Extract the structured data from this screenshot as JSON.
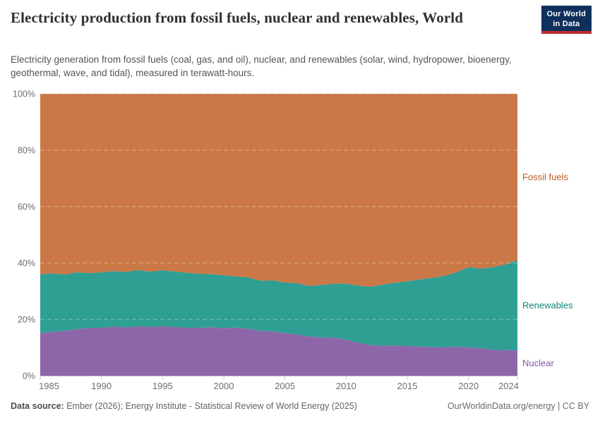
{
  "header": {
    "title": "Electricity production from fossil fuels, nuclear and renewables, World",
    "subtitle": "Electricity generation from fossil fuels (coal, gas, and oil), nuclear, and renewables (solar, wind, hydropower, bioenergy, geothermal, wave, and tidal), measured in terawatt-hours.",
    "logo": {
      "line1": "Our World",
      "line2": "in Data",
      "bg_color": "#10305c",
      "accent_color": "#c22d2d"
    }
  },
  "chart_data": {
    "type": "area",
    "stacked": true,
    "unit": "% share of electricity production",
    "ylim": [
      0,
      100
    ],
    "grid": true,
    "legend_position": "right-edge-labels",
    "x": [
      1985,
      1986,
      1987,
      1988,
      1989,
      1990,
      1991,
      1992,
      1993,
      1994,
      1995,
      1996,
      1997,
      1998,
      1999,
      2000,
      2001,
      2002,
      2003,
      2004,
      2005,
      2006,
      2007,
      2008,
      2009,
      2010,
      2011,
      2012,
      2013,
      2014,
      2015,
      2016,
      2017,
      2018,
      2019,
      2020,
      2021,
      2022,
      2023,
      2024
    ],
    "series": [
      {
        "name": "Nuclear",
        "color": "#8d66aa",
        "label_color": "#8456a5",
        "values": [
          15.1,
          15.6,
          15.9,
          16.6,
          17.0,
          17.0,
          17.4,
          17.2,
          17.5,
          17.3,
          17.5,
          17.3,
          17.0,
          17.0,
          17.2,
          16.8,
          17.1,
          16.7,
          15.9,
          15.8,
          15.1,
          14.7,
          13.9,
          13.6,
          13.5,
          12.8,
          11.7,
          10.8,
          10.7,
          10.7,
          10.6,
          10.4,
          10.2,
          10.1,
          10.3,
          10.0,
          9.8,
          9.2,
          9.1,
          9.0
        ]
      },
      {
        "name": "Renewables",
        "color": "#2f9e93",
        "label_color": "#12847b",
        "values": [
          20.9,
          20.7,
          20.0,
          20.1,
          19.4,
          19.7,
          19.7,
          19.6,
          20.0,
          19.6,
          19.9,
          19.7,
          19.5,
          19.2,
          18.8,
          18.9,
          18.1,
          18.2,
          17.8,
          18.0,
          18.0,
          18.1,
          17.9,
          18.6,
          19.2,
          19.9,
          20.2,
          20.8,
          21.6,
          22.3,
          22.9,
          23.8,
          24.5,
          25.3,
          26.4,
          28.5,
          28.2,
          29.3,
          30.3,
          32.0
        ]
      },
      {
        "name": "Fossil fuels",
        "color": "#ca7848",
        "label_color": "#bd5a20",
        "values": [
          64.0,
          63.7,
          64.1,
          63.3,
          63.6,
          63.3,
          62.9,
          63.2,
          62.5,
          63.1,
          62.6,
          63.0,
          63.5,
          63.8,
          64.0,
          64.3,
          64.8,
          65.1,
          66.3,
          66.2,
          66.9,
          67.2,
          68.2,
          67.8,
          67.3,
          67.3,
          68.1,
          68.4,
          67.7,
          67.0,
          66.5,
          65.8,
          65.3,
          64.6,
          63.3,
          61.5,
          62.0,
          61.5,
          60.6,
          59.0
        ]
      }
    ],
    "yticks": [
      {
        "value": 0,
        "label": "0%"
      },
      {
        "value": 20,
        "label": "20%"
      },
      {
        "value": 40,
        "label": "40%"
      },
      {
        "value": 60,
        "label": "60%"
      },
      {
        "value": 80,
        "label": "80%"
      },
      {
        "value": 100,
        "label": "100%"
      }
    ],
    "xticks": [
      1985,
      1990,
      1995,
      2000,
      2005,
      2010,
      2015,
      2020,
      2024
    ],
    "axis_text_color": "#6e6e6e",
    "axis_line_color": "#cccccc",
    "gridline_color": "rgba(255,255,255,0.38)"
  },
  "footer": {
    "source_label": "Data source:",
    "source_text": "Ember (2026); Energy Institute - Statistical Review of World Energy (2025)",
    "credit": "OurWorldinData.org/energy | CC BY"
  }
}
